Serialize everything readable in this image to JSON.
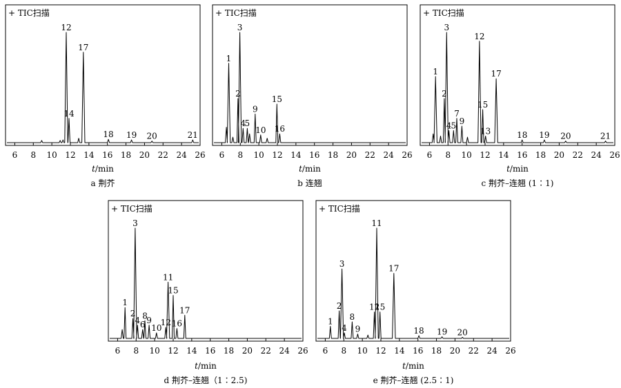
{
  "chart_data": [
    {
      "type": "line",
      "panel_label": "+ TIC扫描",
      "caption": "a 荆芥",
      "xlabel_var": "t",
      "xlabel_unit": "/min",
      "xlim": [
        5,
        26
      ],
      "xticks": [
        6,
        8,
        10,
        12,
        14,
        16,
        18,
        20,
        22,
        24,
        26
      ],
      "ylim": [
        0,
        100
      ],
      "peaks": [
        {
          "label": "",
          "x": 8.9,
          "y": 2
        },
        {
          "label": "",
          "x": 10.9,
          "y": 2
        },
        {
          "label": "",
          "x": 11.2,
          "y": 2.5
        },
        {
          "label": "12",
          "x": 11.55,
          "y": 100
        },
        {
          "label": "14",
          "x": 11.85,
          "y": 22
        },
        {
          "label": "",
          "x": 12.9,
          "y": 4
        },
        {
          "label": "17",
          "x": 13.4,
          "y": 82
        },
        {
          "label": "18",
          "x": 16.1,
          "y": 3
        },
        {
          "label": "19",
          "x": 18.6,
          "y": 2.5
        },
        {
          "label": "20",
          "x": 20.8,
          "y": 1.5
        },
        {
          "label": "21",
          "x": 25.2,
          "y": 2.5
        }
      ]
    },
    {
      "type": "line",
      "panel_label": "+ TIC扫描",
      "caption": "b 连翘",
      "xlabel_var": "t",
      "xlabel_unit": "/min",
      "xlim": [
        5,
        26
      ],
      "xticks": [
        6,
        8,
        10,
        12,
        14,
        16,
        18,
        20,
        22,
        24,
        26
      ],
      "ylim": [
        0,
        100
      ],
      "peaks": [
        {
          "label": "",
          "x": 6.5,
          "y": 14
        },
        {
          "label": "1",
          "x": 6.75,
          "y": 72
        },
        {
          "label": "",
          "x": 7.2,
          "y": 5
        },
        {
          "label": "2",
          "x": 7.75,
          "y": 40
        },
        {
          "label": "3",
          "x": 7.95,
          "y": 100
        },
        {
          "label": "4",
          "x": 8.3,
          "y": 13
        },
        {
          "label": "5",
          "x": 8.75,
          "y": 13
        },
        {
          "label": "",
          "x": 9.0,
          "y": 8
        },
        {
          "label": "9",
          "x": 9.6,
          "y": 26
        },
        {
          "label": "10",
          "x": 10.2,
          "y": 7
        },
        {
          "label": "",
          "x": 10.9,
          "y": 4
        },
        {
          "label": "15",
          "x": 11.95,
          "y": 35
        },
        {
          "label": "16",
          "x": 12.25,
          "y": 8
        }
      ]
    },
    {
      "type": "line",
      "panel_label": "+ TIC扫描",
      "caption": "c 荆芥–连翘 (1∶1)",
      "xlabel_var": "t",
      "xlabel_unit": "/min",
      "xlim": [
        5,
        26
      ],
      "xticks": [
        6,
        8,
        10,
        12,
        14,
        16,
        18,
        20,
        22,
        24,
        26
      ],
      "ylim": [
        0,
        100
      ],
      "peaks": [
        {
          "label": "",
          "x": 6.4,
          "y": 8
        },
        {
          "label": "1",
          "x": 6.65,
          "y": 60
        },
        {
          "label": "",
          "x": 7.2,
          "y": 6
        },
        {
          "label": "2",
          "x": 7.6,
          "y": 40
        },
        {
          "label": "3",
          "x": 7.85,
          "y": 100
        },
        {
          "label": "4",
          "x": 8.1,
          "y": 11
        },
        {
          "label": "5",
          "x": 8.6,
          "y": 11
        },
        {
          "label": "7",
          "x": 8.95,
          "y": 22
        },
        {
          "label": "9",
          "x": 9.5,
          "y": 15
        },
        {
          "label": "",
          "x": 10.1,
          "y": 5
        },
        {
          "label": "12",
          "x": 11.4,
          "y": 92
        },
        {
          "label": "15",
          "x": 11.75,
          "y": 30
        },
        {
          "label": "13",
          "x": 12.05,
          "y": 6
        },
        {
          "label": "17",
          "x": 13.2,
          "y": 58
        },
        {
          "label": "18",
          "x": 16.0,
          "y": 2.5
        },
        {
          "label": "19",
          "x": 18.4,
          "y": 2.5
        },
        {
          "label": "20",
          "x": 20.7,
          "y": 1.5
        },
        {
          "label": "21",
          "x": 25.0,
          "y": 1.5
        }
      ]
    },
    {
      "type": "line",
      "panel_label": "+ TIC扫描",
      "caption": "d 荆芥–连翘（1∶2.5)",
      "xlabel_var": "t",
      "xlabel_unit": "/min",
      "xlim": [
        5,
        26
      ],
      "xticks": [
        6,
        8,
        10,
        12,
        14,
        16,
        18,
        20,
        22,
        24,
        26
      ],
      "ylim": [
        0,
        100
      ],
      "peaks": [
        {
          "label": "",
          "x": 6.5,
          "y": 8
        },
        {
          "label": "1",
          "x": 6.8,
          "y": 28
        },
        {
          "label": "2",
          "x": 7.65,
          "y": 18
        },
        {
          "label": "3",
          "x": 7.9,
          "y": 100
        },
        {
          "label": "4",
          "x": 8.15,
          "y": 12
        },
        {
          "label": "6",
          "x": 8.7,
          "y": 8
        },
        {
          "label": "8",
          "x": 8.95,
          "y": 16
        },
        {
          "label": "9",
          "x": 9.4,
          "y": 12
        },
        {
          "label": "10",
          "x": 10.2,
          "y": 5
        },
        {
          "label": "12",
          "x": 11.2,
          "y": 10
        },
        {
          "label": "11",
          "x": 11.45,
          "y": 51
        },
        {
          "label": "15",
          "x": 12.0,
          "y": 39
        },
        {
          "label": "16",
          "x": 12.4,
          "y": 9
        },
        {
          "label": "17",
          "x": 13.25,
          "y": 21
        }
      ]
    },
    {
      "type": "line",
      "panel_label": "+ TIC扫描",
      "caption": "e 荆芥–连翘 (2.5∶1)",
      "xlabel_var": "t",
      "xlabel_unit": "/min",
      "xlim": [
        5,
        26
      ],
      "xticks": [
        6,
        8,
        10,
        12,
        14,
        16,
        18,
        20,
        22,
        24,
        26
      ],
      "ylim": [
        0,
        100
      ],
      "peaks": [
        {
          "label": "1",
          "x": 6.55,
          "y": 11
        },
        {
          "label": "2",
          "x": 7.5,
          "y": 25
        },
        {
          "label": "3",
          "x": 7.8,
          "y": 63
        },
        {
          "label": "4",
          "x": 8.05,
          "y": 5
        },
        {
          "label": "8",
          "x": 8.9,
          "y": 15
        },
        {
          "label": "9",
          "x": 9.5,
          "y": 4
        },
        {
          "label": "",
          "x": 10.6,
          "y": 3
        },
        {
          "label": "12",
          "x": 11.3,
          "y": 24
        },
        {
          "label": "11",
          "x": 11.55,
          "y": 100
        },
        {
          "label": "15",
          "x": 11.9,
          "y": 24
        },
        {
          "label": "17",
          "x": 13.4,
          "y": 59
        },
        {
          "label": "18",
          "x": 16.1,
          "y": 2.5
        },
        {
          "label": "19",
          "x": 18.6,
          "y": 1.5
        },
        {
          "label": "20",
          "x": 20.8,
          "y": 1
        }
      ]
    }
  ]
}
